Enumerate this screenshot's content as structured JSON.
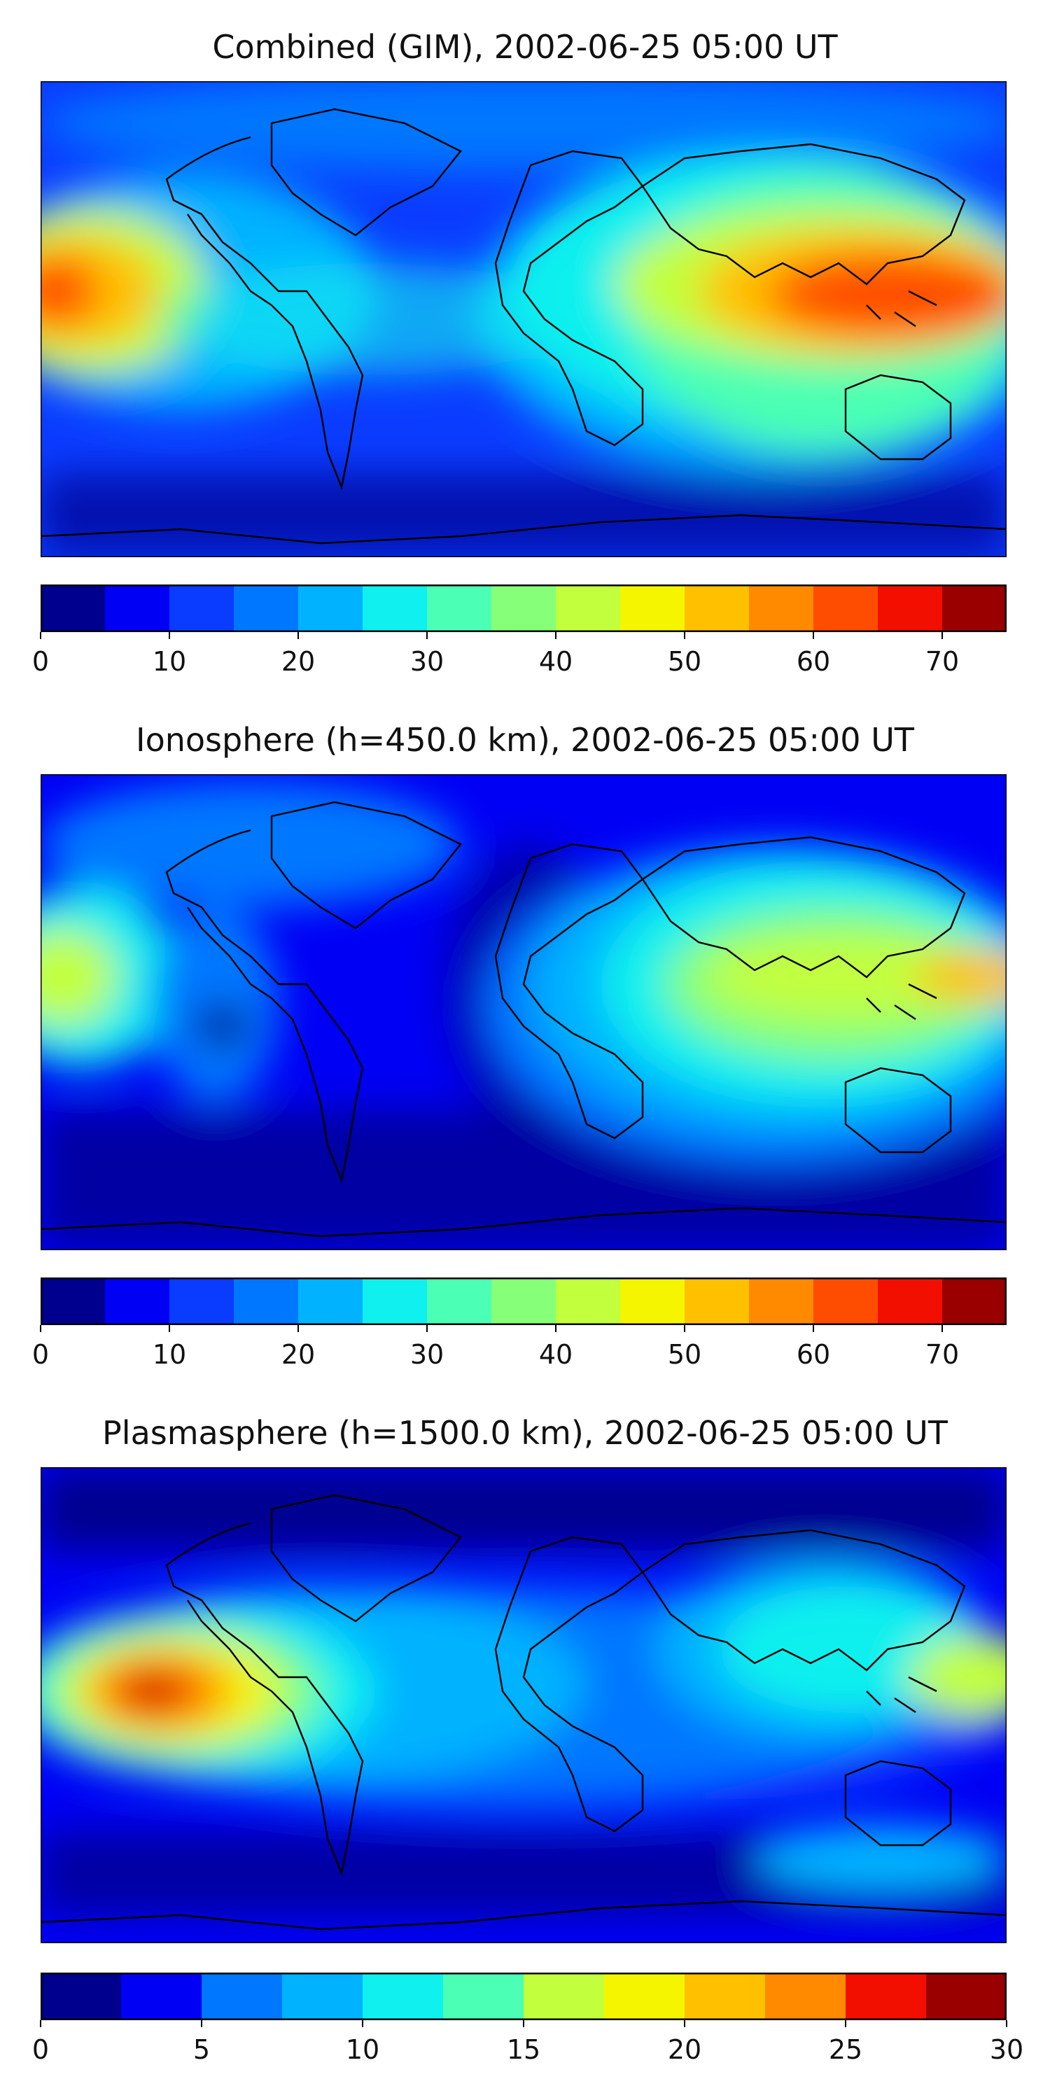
{
  "panels": [
    {
      "title": "Combined (GIM), 2002-06-25 05:00 UT",
      "colorbar": {
        "min": 0,
        "max": 75,
        "step": 5,
        "ticks": [
          "0",
          "10",
          "20",
          "30",
          "40",
          "50",
          "60",
          "70"
        ],
        "tick_values": [
          0,
          10,
          20,
          30,
          40,
          50,
          60,
          70
        ]
      }
    },
    {
      "title": "Ionosphere  (h=450.0 km), 2002-06-25 05:00 UT",
      "colorbar": {
        "min": 0,
        "max": 75,
        "step": 5,
        "ticks": [
          "0",
          "10",
          "20",
          "30",
          "40",
          "50",
          "60",
          "70"
        ],
        "tick_values": [
          0,
          10,
          20,
          30,
          40,
          50,
          60,
          70
        ]
      }
    },
    {
      "title": "Plasmasphere (h=1500.0 km), 2002-06-25 05:00 UT",
      "colorbar": {
        "min": 0,
        "max": 30,
        "step": 2.5,
        "ticks": [
          "0",
          "5",
          "10",
          "15",
          "20",
          "25",
          "30"
        ],
        "tick_values": [
          0,
          5,
          10,
          15,
          20,
          25,
          30
        ]
      }
    }
  ],
  "colors": {
    "jet": [
      "#00008f",
      "#0000f5",
      "#0a3cff",
      "#0077ff",
      "#00b2ff",
      "#10f0ee",
      "#4bffb4",
      "#86ff79",
      "#c2ff3d",
      "#f5f500",
      "#ffc000",
      "#ff8a00",
      "#ff4d00",
      "#f20f00",
      "#9a0000"
    ]
  }
}
